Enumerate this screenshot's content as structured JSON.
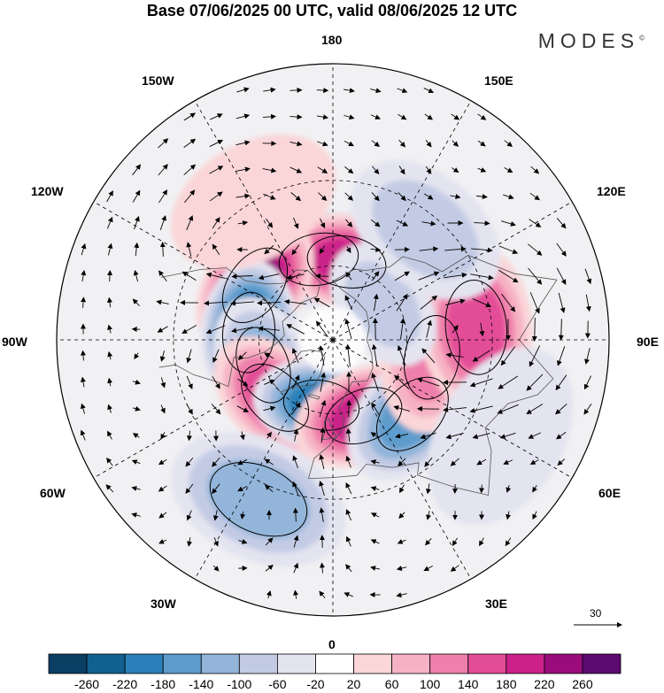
{
  "title": "Base 07/06/2025 00 UTC, valid 08/06/2025 12 UTC",
  "brand": "MODES",
  "brand_mark": "©",
  "longitude_labels": [
    {
      "text": "180",
      "key": "top"
    },
    {
      "text": "150E",
      "key": "ne1"
    },
    {
      "text": "120E",
      "key": "ne2"
    },
    {
      "text": "90E",
      "key": "e"
    },
    {
      "text": "60E",
      "key": "se1"
    },
    {
      "text": "30E",
      "key": "se2"
    },
    {
      "text": "0",
      "key": "bottom"
    },
    {
      "text": "30W",
      "key": "sw2"
    },
    {
      "text": "60W",
      "key": "sw1"
    },
    {
      "text": "90W",
      "key": "w"
    },
    {
      "text": "120W",
      "key": "nw2"
    },
    {
      "text": "150W",
      "key": "nw1"
    }
  ],
  "reference_vector": {
    "label": "30"
  },
  "colorbar": {
    "levels": [
      -260,
      -220,
      -180,
      -140,
      -100,
      -60,
      -20,
      20,
      60,
      100,
      140,
      180,
      220,
      260
    ],
    "labels": [
      "-260",
      "-220",
      "-180",
      "-140",
      "-100",
      "-60",
      "-20",
      "20",
      "60",
      "100",
      "140",
      "180",
      "220",
      "260"
    ],
    "colors": [
      "#0a3e63",
      "#11618f",
      "#2a80b8",
      "#5d9ccc",
      "#93b5da",
      "#c3cbe4",
      "#e4e4f0",
      "#ffffff",
      "#fad6d8",
      "#f6b2c4",
      "#ef80ab",
      "#e34d98",
      "#cb2189",
      "#9a0c7c",
      "#5b0a6e"
    ]
  },
  "anomaly_centres": [
    {
      "lon": -170,
      "lat": 57,
      "value": -200
    },
    {
      "lon": 170,
      "lat": 58,
      "value": 200
    },
    {
      "lon": -125,
      "lat": 52,
      "value": 230
    },
    {
      "lon": -95,
      "lat": 56,
      "value": -220
    },
    {
      "lon": -70,
      "lat": 60,
      "value": -120
    },
    {
      "lon": -45,
      "lat": 57,
      "value": 150
    },
    {
      "lon": -10,
      "lat": 63,
      "value": -200
    },
    {
      "lon": 22,
      "lat": 57,
      "value": 190
    },
    {
      "lon": 47,
      "lat": 47,
      "value": -150
    },
    {
      "lon": 80,
      "lat": 50,
      "value": 130
    },
    {
      "lon": 95,
      "lat": 35,
      "value": 160
    },
    {
      "lon": 125,
      "lat": 65,
      "value": -80
    },
    {
      "lon": -25,
      "lat": 25,
      "value": -120
    },
    {
      "lon": 140,
      "lat": 35,
      "value": -60
    },
    {
      "lon": -150,
      "lat": 30,
      "value": 40
    },
    {
      "lon": 60,
      "lat": 20,
      "value": -40
    }
  ]
}
